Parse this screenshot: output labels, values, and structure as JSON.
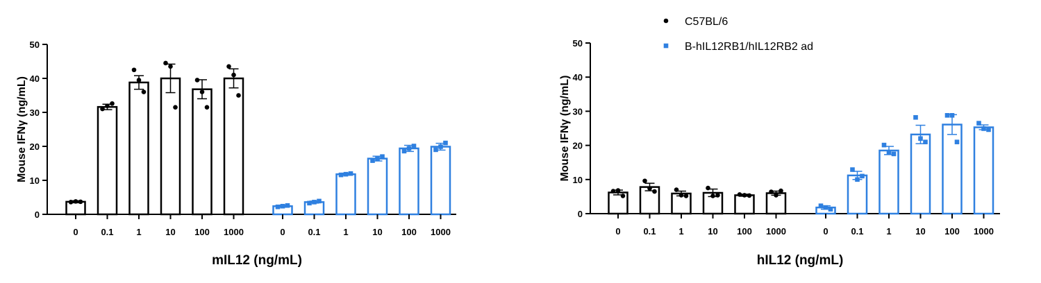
{
  "colors": {
    "C57BL/6": "#000000",
    "B-hIL12RB1/hIL12RB2 ad": "#2f80e0"
  },
  "legend": {
    "items": [
      {
        "label": "C57BL/6",
        "color": "#000000",
        "marker": "circle"
      },
      {
        "label": "B-hIL12RB1/hIL12RB2 ad",
        "color": "#2f80e0",
        "marker": "square"
      }
    ],
    "placement": "top-right"
  },
  "chart_data": [
    {
      "type": "bar",
      "xlabel": "mIL12 (ng/mL)",
      "ylabel": "Mouse IFNγ (ng/mL)",
      "ylim": [
        0,
        50
      ],
      "yticks": [
        0,
        10,
        20,
        30,
        40,
        50
      ],
      "categories": [
        "0",
        "0.1",
        "1",
        "10",
        "100",
        "1000"
      ],
      "grid": false,
      "series": [
        {
          "name": "C57BL/6",
          "color": "#000000",
          "marker": "circle",
          "values": [
            3.7,
            31.6,
            38.8,
            40.0,
            36.8,
            40.0
          ],
          "error": [
            0.3,
            0.8,
            2.0,
            4.2,
            2.8,
            2.8
          ],
          "points": [
            [
              3.6,
              3.8,
              3.7
            ],
            [
              31.0,
              31.9,
              32.6
            ],
            [
              42.5,
              39.5,
              36.0
            ],
            [
              44.5,
              43.5,
              31.5
            ],
            [
              39.5,
              36.0,
              31.5
            ],
            [
              43.5,
              41.0,
              35.0
            ]
          ]
        },
        {
          "name": "B-hIL12RB1/hIL12RB2 ad",
          "color": "#2f80e0",
          "marker": "square",
          "values": [
            2.4,
            3.6,
            11.8,
            16.4,
            19.4,
            19.9
          ],
          "error": [
            0.3,
            0.3,
            0.3,
            0.7,
            0.9,
            1.0
          ],
          "points": [
            [
              2.2,
              2.4,
              2.6
            ],
            [
              3.3,
              3.6,
              3.9
            ],
            [
              11.6,
              11.8,
              12.0
            ],
            [
              15.8,
              16.4,
              17.0
            ],
            [
              18.6,
              19.4,
              20.1
            ],
            [
              19.0,
              19.9,
              21.0
            ]
          ]
        }
      ]
    },
    {
      "type": "bar",
      "xlabel": "hIL12 (ng/mL)",
      "ylabel": "Mouse IFNγ (ng/mL)",
      "ylim": [
        0,
        50
      ],
      "yticks": [
        0,
        10,
        20,
        30,
        40,
        50
      ],
      "categories": [
        "0",
        "0.1",
        "1",
        "10",
        "100",
        "1000"
      ],
      "grid": false,
      "series": [
        {
          "name": "C57BL/6",
          "color": "#000000",
          "marker": "circle",
          "values": [
            6.2,
            7.8,
            5.9,
            6.1,
            5.4,
            6.0
          ],
          "error": [
            0.7,
            1.1,
            0.7,
            1.1,
            0.3,
            0.6
          ],
          "points": [
            [
              6.6,
              6.8,
              5.2
            ],
            [
              9.6,
              7.4,
              6.5
            ],
            [
              7.0,
              5.4,
              5.2
            ],
            [
              7.5,
              5.2,
              5.4
            ],
            [
              5.6,
              5.4,
              5.3
            ],
            [
              6.4,
              5.4,
              6.7
            ]
          ]
        },
        {
          "name": "B-hIL12RB1/hIL12RB2 ad",
          "color": "#2f80e0",
          "marker": "square",
          "values": [
            1.8,
            11.2,
            18.5,
            23.2,
            26.1,
            25.3
          ],
          "error": [
            0.5,
            1.2,
            1.2,
            2.7,
            2.9,
            0.7
          ],
          "points": [
            [
              2.3,
              1.8,
              1.3
            ],
            [
              12.9,
              10.0,
              11.0
            ],
            [
              20.1,
              18.0,
              17.5
            ],
            [
              28.2,
              22.0,
              21.0
            ],
            [
              28.8,
              28.8,
              21.0
            ],
            [
              26.5,
              24.9,
              24.6
            ]
          ]
        }
      ]
    }
  ]
}
